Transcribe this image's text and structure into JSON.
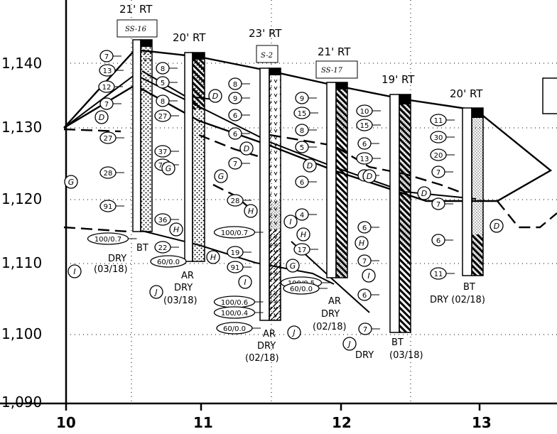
{
  "axes": {
    "y_ticks": [
      "1,140",
      "1,130",
      "1,120",
      "1,110",
      "1,100",
      "1,090"
    ],
    "x_ticks": [
      "10",
      "11",
      "12",
      "13"
    ]
  },
  "borings": [
    {
      "offset": "21' RT",
      "tag": "SS-16",
      "blows": [
        "7",
        "13",
        "12",
        "7",
        "27",
        "28",
        "91",
        "100/0.7"
      ],
      "note": [
        "BT",
        "DRY",
        "(03/18)"
      ]
    },
    {
      "offset": "20' RT",
      "tag": "",
      "blows": [
        "8",
        "5",
        "8",
        "27",
        "37",
        "72",
        "36",
        "22",
        "60/0.0"
      ],
      "note": [
        "AR",
        "DRY",
        "(03/18)"
      ]
    },
    {
      "offset": "23' RT",
      "tag": "S-2",
      "blows": [
        "8",
        "9",
        "6",
        "6",
        "7",
        "28",
        "100/0.7",
        "19",
        "91",
        "100/0.6",
        "100/0.4",
        "60/0.0"
      ],
      "note": [
        "AR",
        "DRY",
        "(02/18)"
      ]
    },
    {
      "offset": "21' RT",
      "tag": "SS-17",
      "blows": [
        "9",
        "15",
        "8",
        "5",
        "6",
        "4",
        "17",
        "100/0.5",
        "60/0.0"
      ],
      "note": [
        "AR",
        "DRY",
        "(02/18)"
      ]
    },
    {
      "offset": "19' RT",
      "tag": "",
      "blows": [
        "10",
        "15",
        "6",
        "13",
        "6",
        "6",
        "7",
        "6",
        "7"
      ],
      "note": [
        "BT",
        "(03/18)",
        "DRY"
      ]
    },
    {
      "offset": "20' RT",
      "tag": "",
      "blows": [
        "11",
        "30",
        "20",
        "7",
        "7",
        "6",
        "11"
      ],
      "note": [
        "BT",
        "DRY  (02/18)"
      ]
    }
  ],
  "zones": [
    "D",
    "D",
    "D",
    "D",
    "D",
    "D",
    "D",
    "G",
    "G",
    "G",
    "G",
    "H",
    "H",
    "H",
    "H",
    "H",
    "I",
    "I",
    "I",
    "I",
    "J",
    "J",
    "J"
  ],
  "colors": {
    "ink": "#000000",
    "paper": "#ffffff"
  }
}
